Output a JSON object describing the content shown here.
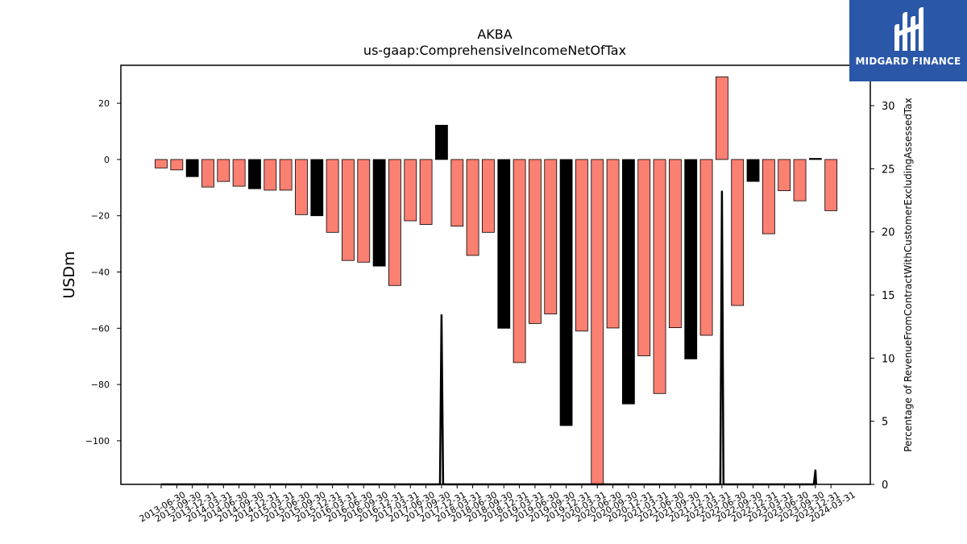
{
  "chart_data": {
    "type": "bar",
    "title": "AKBA",
    "subtitle": "us-gaap:ComprehensiveIncomeNetOfTax",
    "ylabel": "USDm",
    "y2label": "Percentage of RevenueFromContractWithCustomerExcludingAssessedTax",
    "ylim": [
      -115.5,
      33.5
    ],
    "y2lim": [
      0,
      33.2
    ],
    "yticks": [
      20,
      0,
      -20,
      -40,
      -60,
      -80,
      -100
    ],
    "y2ticks": [
      0,
      5,
      10,
      15,
      20,
      25,
      30
    ],
    "grid": false,
    "colors": {
      "bar": "#fa8072",
      "bar_highlight": "#000000",
      "line": "#000000",
      "edge": "#000000"
    },
    "categories": [
      "2013-06-30",
      "2013-09-30",
      "2013-12-31",
      "2014-03-31",
      "2014-06-30",
      "2014-09-30",
      "2014-12-31",
      "2015-03-31",
      "2015-06-30",
      "2015-09-30",
      "2015-12-31",
      "2016-03-31",
      "2016-06-30",
      "2016-09-30",
      "2016-12-31",
      "2017-03-31",
      "2017-06-30",
      "2017-09-30",
      "2017-12-31",
      "2018-03-31",
      "2018-06-30",
      "2018-09-30",
      "2018-12-31",
      "2019-03-31",
      "2019-06-30",
      "2019-09-30",
      "2019-12-31",
      "2020-03-31",
      "2020-06-30",
      "2020-09-30",
      "2020-12-31",
      "2021-03-31",
      "2021-06-30",
      "2021-09-30",
      "2021-12-31",
      "2022-03-31",
      "2022-06-30",
      "2022-09-30",
      "2022-12-31",
      "2023-03-31",
      "2023-06-30",
      "2023-09-30",
      "2023-12-31",
      "2024-03-31"
    ],
    "series": [
      {
        "type": "bar",
        "values": [
          -3.0,
          -3.7,
          -6.1,
          -9.8,
          -7.8,
          -9.5,
          -10.4,
          -10.9,
          -10.9,
          -19.6,
          -20.0,
          -25.9,
          -35.9,
          -36.5,
          -37.9,
          -44.8,
          -21.8,
          -23.1,
          12.2,
          -23.7,
          -34.1,
          -25.9,
          -60.0,
          -72.2,
          -58.3,
          -54.9,
          -94.6,
          -61.0,
          -116.0,
          -59.9,
          -86.9,
          -69.8,
          -83.2,
          -59.8,
          -70.9,
          -62.5,
          29.4,
          -51.9,
          -7.8,
          -26.4,
          -11.1,
          -14.7,
          0.4,
          -18.2
        ],
        "highlight": [
          false,
          false,
          true,
          false,
          false,
          false,
          true,
          false,
          false,
          false,
          true,
          false,
          false,
          false,
          true,
          false,
          false,
          false,
          true,
          false,
          false,
          false,
          true,
          false,
          false,
          false,
          true,
          false,
          false,
          false,
          true,
          false,
          false,
          false,
          true,
          false,
          false,
          false,
          true,
          false,
          false,
          false,
          true,
          false
        ]
      },
      {
        "type": "line",
        "axis": "y2",
        "points": [
          [
            0,
            0
          ],
          [
            1,
            0
          ],
          [
            2,
            0
          ],
          [
            3,
            0
          ],
          [
            4,
            0
          ],
          [
            5,
            0
          ],
          [
            6,
            0
          ],
          [
            7,
            0
          ],
          [
            8,
            0
          ],
          [
            9,
            0
          ],
          [
            10,
            0
          ],
          [
            11,
            0
          ],
          [
            12,
            0
          ],
          [
            13,
            0
          ],
          [
            14,
            0
          ],
          [
            15,
            0
          ],
          [
            17.9,
            0
          ],
          [
            18,
            13.4
          ],
          [
            18.1,
            0
          ],
          [
            35.9,
            0
          ],
          [
            36,
            23.2
          ],
          [
            36.1,
            0
          ],
          [
            41.9,
            0
          ],
          [
            42,
            1.1
          ],
          [
            42.05,
            0
          ]
        ]
      }
    ]
  },
  "logo": {
    "text": "MIDGARD FINANCE",
    "icon": "midgard-logo-icon"
  }
}
